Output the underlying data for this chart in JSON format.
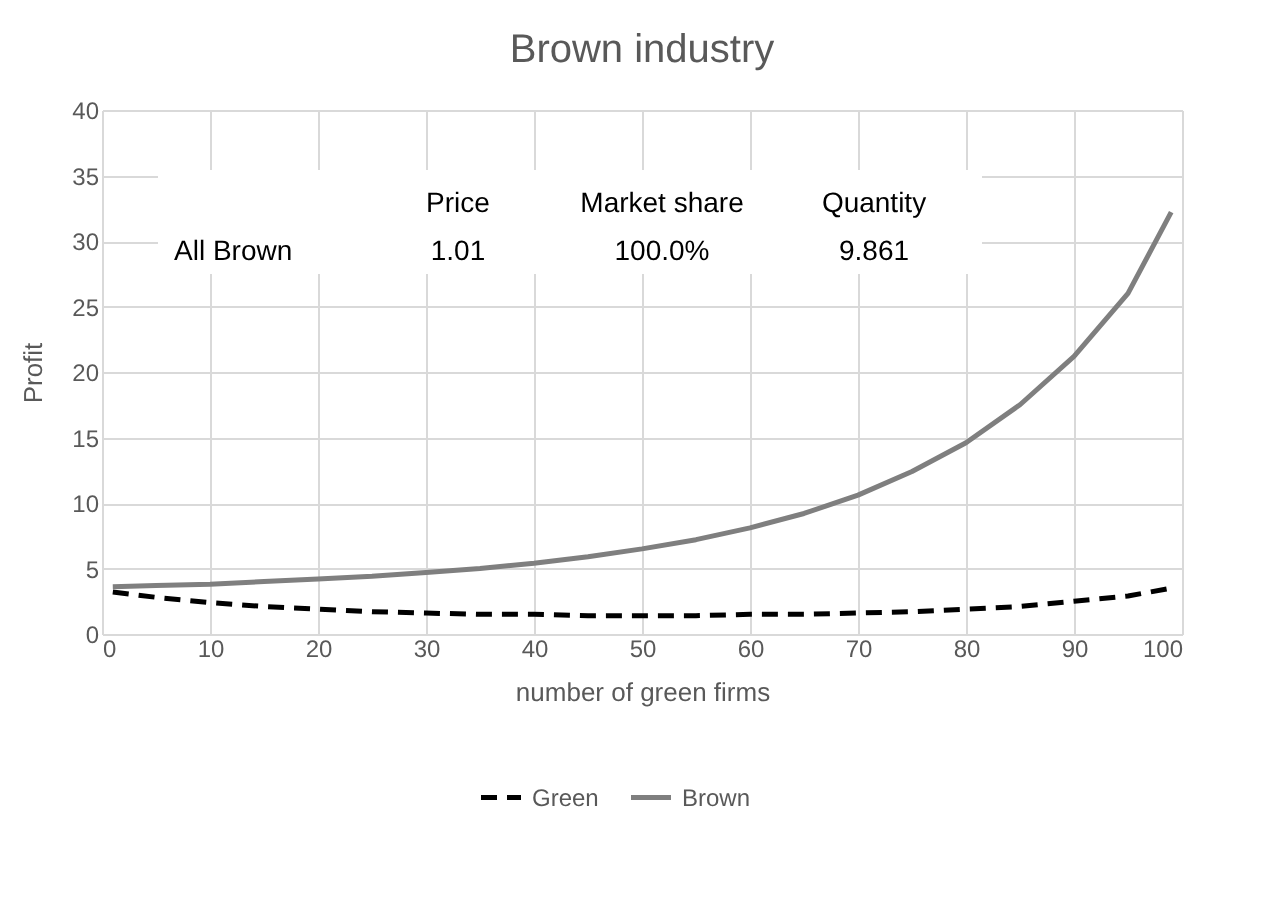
{
  "chart_data": {
    "type": "line",
    "title": "Brown industry",
    "xlabel": "number of green firms",
    "ylabel": "Profit",
    "x": [
      1,
      5,
      10,
      15,
      20,
      25,
      30,
      35,
      40,
      45,
      50,
      55,
      60,
      65,
      70,
      75,
      80,
      85,
      90,
      95,
      99
    ],
    "series": [
      {
        "name": "Green",
        "color": "#000000",
        "line_style": "dashed",
        "values": [
          3.2,
          2.8,
          2.4,
          2.1,
          1.9,
          1.7,
          1.6,
          1.5,
          1.5,
          1.4,
          1.4,
          1.4,
          1.5,
          1.5,
          1.6,
          1.7,
          1.9,
          2.1,
          2.5,
          2.9,
          3.5
        ]
      },
      {
        "name": "Brown",
        "color": "#7f7f7f",
        "line_style": "solid",
        "values": [
          3.6,
          3.7,
          3.8,
          4.0,
          4.2,
          4.4,
          4.7,
          5.0,
          5.4,
          5.9,
          6.5,
          7.2,
          8.1,
          9.2,
          10.6,
          12.4,
          14.6,
          17.5,
          21.2,
          26.0,
          32.2
        ]
      }
    ],
    "xlim": [
      0,
      100
    ],
    "xticks": [
      0,
      10,
      20,
      30,
      40,
      50,
      60,
      70,
      80,
      90,
      100
    ],
    "ylim": [
      0,
      40
    ],
    "yticks": [
      0,
      5,
      10,
      15,
      20,
      25,
      30,
      35,
      40
    ],
    "grid": true,
    "legend": "bottom",
    "marker": "none",
    "annotations": [
      "Price",
      "Market share",
      "Quantity",
      "All Brown",
      "1.01",
      "100.0%",
      "9.861"
    ]
  }
}
